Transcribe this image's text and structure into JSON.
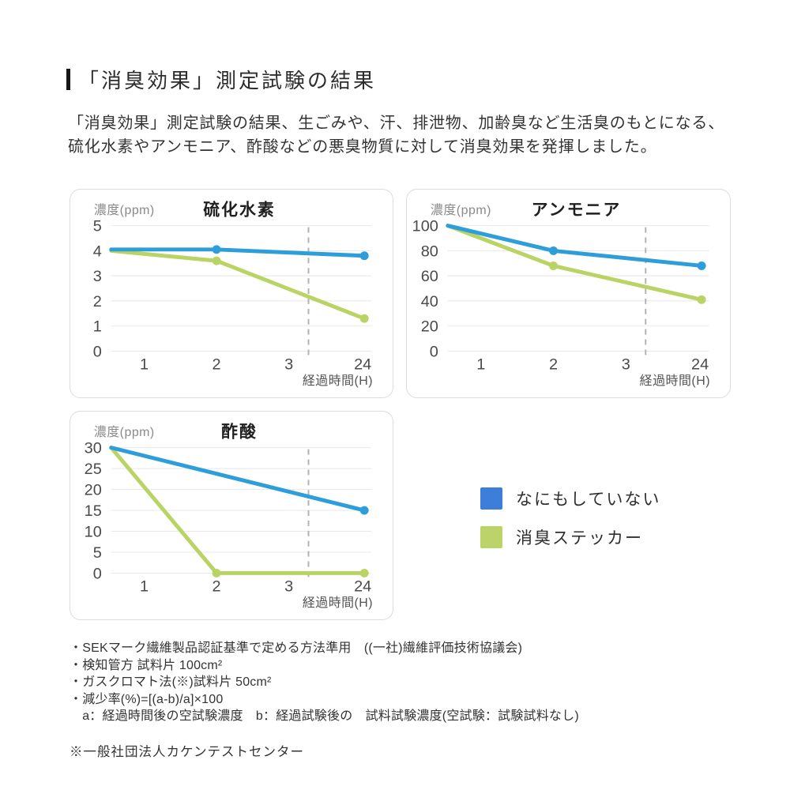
{
  "header": {
    "title": "「消臭効果」測定試験の結果"
  },
  "intro": {
    "line1": "「消臭効果」測定試験の結果、生ごみや、汗、排泄物、加齢臭など生活臭のもとになる、",
    "line2": "硫化水素やアンモニア、酢酸などの悪臭物質に対して消臭効果を発揮しました。"
  },
  "colors": {
    "series_blue": "#2D9ED9",
    "series_green": "#B9D464",
    "legend_blue": "#3E7EDB",
    "legend_green": "#BCD36A",
    "grid": "#E8E8E8",
    "dashed": "#B3B3B3",
    "tick_text": "#4a4a4a",
    "axis_text": "#555555",
    "ylabel_text": "#8a8a8a",
    "title_text": "#1f1f1f"
  },
  "legend": {
    "items": [
      {
        "label": "なにもしていない",
        "color": "#3E7EDB"
      },
      {
        "label": "消臭ステッカー",
        "color": "#BCD36A"
      }
    ]
  },
  "chart_data": [
    {
      "type": "line",
      "title": "硫化水素",
      "ylabel": "濃度(ppm)",
      "xlabel": "経過時間(H)",
      "x_tick_labels": [
        "1",
        "2",
        "3",
        "24"
      ],
      "x_ticks_hours": [
        1,
        2,
        3,
        24
      ],
      "y_ticks": [
        0,
        1,
        2,
        3,
        4,
        5
      ],
      "ylim": [
        0,
        5
      ],
      "grid": true,
      "dashed_guide": true,
      "legend_position": "external",
      "series": [
        {
          "name": "なにもしていない",
          "color_key": "blue",
          "x_hours": [
            0,
            2,
            24
          ],
          "values": [
            4.05,
            4.05,
            3.8
          ],
          "dots_at_hours": [
            2,
            24
          ]
        },
        {
          "name": "消臭ステッカー",
          "color_key": "green",
          "x_hours": [
            0,
            2,
            24
          ],
          "values": [
            4.0,
            3.6,
            1.3
          ],
          "dots_at_hours": [
            2,
            24
          ]
        }
      ]
    },
    {
      "type": "line",
      "title": "アンモニア",
      "ylabel": "濃度(ppm)",
      "xlabel": "経過時間(H)",
      "x_tick_labels": [
        "1",
        "2",
        "3",
        "24"
      ],
      "x_ticks_hours": [
        1,
        2,
        3,
        24
      ],
      "y_ticks": [
        0,
        20,
        40,
        60,
        80,
        100
      ],
      "ylim": [
        0,
        100
      ],
      "grid": true,
      "dashed_guide": true,
      "legend_position": "external",
      "series": [
        {
          "name": "なにもしていない",
          "color_key": "blue",
          "x_hours": [
            0,
            2,
            24
          ],
          "values": [
            100,
            80,
            68
          ],
          "dots_at_hours": [
            2,
            24
          ]
        },
        {
          "name": "消臭ステッカー",
          "color_key": "green",
          "x_hours": [
            0,
            2,
            24
          ],
          "values": [
            100,
            68,
            41
          ],
          "dots_at_hours": [
            2,
            24
          ]
        }
      ]
    },
    {
      "type": "line",
      "title": "酢酸",
      "ylabel": "濃度(ppm)",
      "xlabel": "経過時間(H)",
      "x_tick_labels": [
        "1",
        "2",
        "3",
        "24"
      ],
      "x_ticks_hours": [
        1,
        2,
        3,
        24
      ],
      "y_ticks": [
        0,
        5,
        10,
        15,
        20,
        25,
        30
      ],
      "ylim": [
        0,
        30
      ],
      "grid": true,
      "dashed_guide": true,
      "legend_position": "external",
      "series": [
        {
          "name": "なにもしていない",
          "color_key": "blue",
          "x_hours": [
            0,
            24
          ],
          "values": [
            30,
            15
          ],
          "dots_at_hours": [
            24
          ]
        },
        {
          "name": "消臭ステッカー",
          "color_key": "green",
          "x_hours": [
            0,
            2,
            24
          ],
          "values": [
            30,
            0,
            0
          ],
          "dots_at_hours": [
            2,
            24
          ]
        }
      ]
    }
  ],
  "footnotes": {
    "items": [
      "・SEKマーク繊維製品認証基準で定める方法準用　((一社)繊維評価技術協議会)",
      "・検知管方 試料片 100cm²",
      "・ガスクロマト法(※)試料片 50cm²",
      "・減少率(%)=[(a-b)/a]×100",
      "　a：経過時間後の空試験濃度　b：経過試験後の　試料試験濃度(空試験：試験試料なし)"
    ],
    "source_note": "※一般社団法人カケンテストセンター"
  }
}
